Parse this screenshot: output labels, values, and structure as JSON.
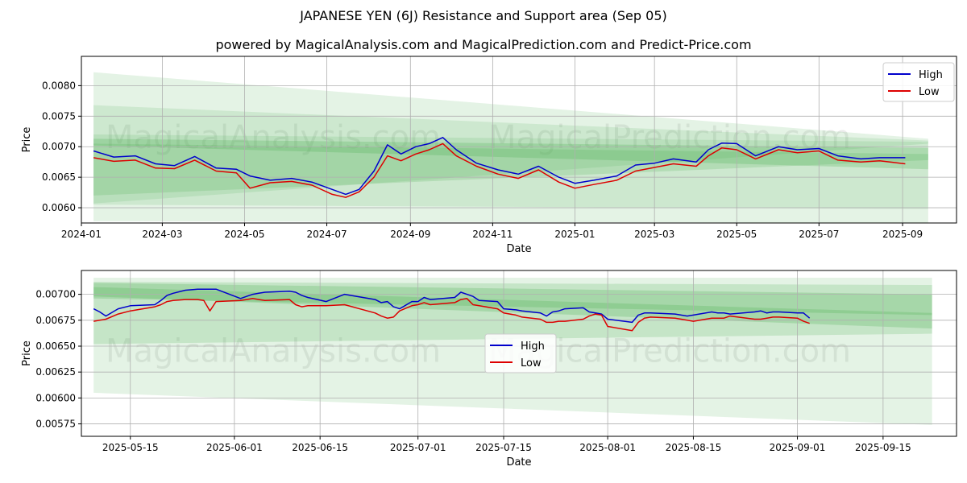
{
  "title": "JAPANESE YEN (6J) Resistance and Support area (Sep 05)",
  "subtitle": "powered by MagicalAnalysis.com and MagicalPrediction.com and Predict-Price.com",
  "watermarks": [
    "MagicalAnalysis.com",
    "MagicalPrediction.com"
  ],
  "colors": {
    "high": "#0000cc",
    "low": "#dd0000",
    "band": "#4caf50",
    "grid": "#b0b0b0"
  },
  "chart_data": [
    {
      "type": "line",
      "xlabel": "Date",
      "ylabel": "Price",
      "legend_position": "top-right",
      "x_range": [
        "2024-01-01",
        "2025-10-11"
      ],
      "ylim": [
        0.00575,
        0.00848
      ],
      "x_ticks": [
        "2024-01",
        "2024-03",
        "2024-05",
        "2024-07",
        "2024-09",
        "2024-11",
        "2025-01",
        "2025-03",
        "2025-05",
        "2025-07",
        "2025-09"
      ],
      "y_ticks": [
        0.006,
        0.0065,
        0.007,
        0.0075,
        0.008
      ],
      "y_tick_labels": [
        "0.0060",
        "0.0065",
        "0.0070",
        "0.0075",
        "0.0080"
      ],
      "grid": true,
      "series": [
        {
          "name": "High",
          "x": [
            "2024-01-10",
            "2024-01-25",
            "2024-02-10",
            "2024-02-25",
            "2024-03-10",
            "2024-03-25",
            "2024-04-10",
            "2024-04-25",
            "2024-05-05",
            "2024-05-20",
            "2024-06-05",
            "2024-06-20",
            "2024-07-05",
            "2024-07-15",
            "2024-07-25",
            "2024-08-05",
            "2024-08-15",
            "2024-08-25",
            "2024-09-05",
            "2024-09-15",
            "2024-09-25",
            "2024-10-05",
            "2024-10-20",
            "2024-11-05",
            "2024-11-20",
            "2024-12-05",
            "2024-12-20",
            "2025-01-01",
            "2025-01-15",
            "2025-02-01",
            "2025-02-15",
            "2025-03-01",
            "2025-03-15",
            "2025-04-01",
            "2025-04-10",
            "2025-04-20",
            "2025-05-01",
            "2025-05-15",
            "2025-06-01",
            "2025-06-15",
            "2025-07-01",
            "2025-07-15",
            "2025-08-01",
            "2025-08-15",
            "2025-09-03"
          ],
          "values": [
            0.00693,
            0.00683,
            0.00685,
            0.00672,
            0.00669,
            0.00684,
            0.00665,
            0.00663,
            0.00652,
            0.00645,
            0.00648,
            0.00642,
            0.0063,
            0.00622,
            0.0063,
            0.0066,
            0.00703,
            0.00688,
            0.007,
            0.00705,
            0.00715,
            0.00695,
            0.00673,
            0.00662,
            0.00655,
            0.00668,
            0.0065,
            0.0064,
            0.00645,
            0.00652,
            0.0067,
            0.00673,
            0.0068,
            0.00675,
            0.00695,
            0.00706,
            0.00705,
            0.00685,
            0.007,
            0.00695,
            0.00697,
            0.00685,
            0.0068,
            0.00682,
            0.00682
          ]
        },
        {
          "name": "Low",
          "x": [
            "2024-01-10",
            "2024-01-25",
            "2024-02-10",
            "2024-02-25",
            "2024-03-10",
            "2024-03-25",
            "2024-04-10",
            "2024-04-25",
            "2024-05-05",
            "2024-05-20",
            "2024-06-05",
            "2024-06-20",
            "2024-07-05",
            "2024-07-15",
            "2024-07-25",
            "2024-08-05",
            "2024-08-15",
            "2024-08-25",
            "2024-09-05",
            "2024-09-15",
            "2024-09-25",
            "2024-10-05",
            "2024-10-20",
            "2024-11-05",
            "2024-11-20",
            "2024-12-05",
            "2024-12-20",
            "2025-01-01",
            "2025-01-15",
            "2025-02-01",
            "2025-02-15",
            "2025-03-01",
            "2025-03-15",
            "2025-04-01",
            "2025-04-10",
            "2025-04-20",
            "2025-05-01",
            "2025-05-15",
            "2025-06-01",
            "2025-06-15",
            "2025-07-01",
            "2025-07-15",
            "2025-08-01",
            "2025-08-15",
            "2025-09-03"
          ],
          "values": [
            0.00682,
            0.00676,
            0.00678,
            0.00665,
            0.00664,
            0.00678,
            0.0066,
            0.00657,
            0.00632,
            0.00641,
            0.00643,
            0.00637,
            0.00622,
            0.00617,
            0.00626,
            0.0065,
            0.00685,
            0.00677,
            0.00688,
            0.00695,
            0.00705,
            0.00685,
            0.00668,
            0.00655,
            0.00648,
            0.00662,
            0.00642,
            0.00632,
            0.00638,
            0.00645,
            0.0066,
            0.00666,
            0.00672,
            0.00668,
            0.00685,
            0.00698,
            0.00695,
            0.0068,
            0.00695,
            0.0069,
            0.00693,
            0.00678,
            0.00675,
            0.00677,
            0.00672
          ]
        }
      ],
      "bands": [
        {
          "x": [
            "2024-01-10",
            "2025-09-20"
          ],
          "upper": [
            0.00822,
            0.00713
          ],
          "lower": [
            0.00578,
            0.00575
          ],
          "opacity": 0.15
        },
        {
          "x": [
            "2024-01-10",
            "2025-09-20"
          ],
          "upper": [
            0.00768,
            0.0071
          ],
          "lower": [
            0.00605,
            0.00598
          ],
          "opacity": 0.15
        },
        {
          "x": [
            "2024-01-10",
            "2025-09-20"
          ],
          "upper": [
            0.0072,
            0.00708
          ],
          "lower": [
            0.00607,
            0.00705
          ],
          "opacity": 0.15
        },
        {
          "x": [
            "2024-01-10",
            "2025-09-20"
          ],
          "upper": [
            0.00713,
            0.00698
          ],
          "lower": [
            0.00702,
            0.00663
          ],
          "opacity": 0.25
        },
        {
          "x": [
            "2024-01-10",
            "2025-09-20"
          ],
          "upper": [
            0.00705,
            0.00688
          ],
          "lower": [
            0.0062,
            0.00678
          ],
          "opacity": 0.2
        }
      ]
    },
    {
      "type": "line",
      "xlabel": "Date",
      "ylabel": "Price",
      "legend_position": "center",
      "x_range": [
        "2025-05-07",
        "2025-09-27"
      ],
      "ylim": [
        0.00563,
        0.00723
      ],
      "x_ticks": [
        "2025-05-15",
        "2025-06-01",
        "2025-06-15",
        "2025-07-01",
        "2025-07-15",
        "2025-08-01",
        "2025-08-15",
        "2025-09-01",
        "2025-09-15"
      ],
      "y_ticks": [
        0.00575,
        0.006,
        0.00625,
        0.0065,
        0.00675,
        0.007
      ],
      "y_tick_labels": [
        "0.00575",
        "0.00600",
        "0.00625",
        "0.00650",
        "0.00675",
        "0.00700"
      ],
      "grid": true,
      "series": [
        {
          "name": "High",
          "x": [
            "2025-05-09",
            "2025-05-10",
            "2025-05-11",
            "2025-05-13",
            "2025-05-15",
            "2025-05-19",
            "2025-05-20",
            "2025-05-21",
            "2025-05-22",
            "2025-05-24",
            "2025-05-26",
            "2025-05-27",
            "2025-05-28",
            "2025-05-29",
            "2025-06-02",
            "2025-06-03",
            "2025-06-04",
            "2025-06-05",
            "2025-06-06",
            "2025-06-10",
            "2025-06-11",
            "2025-06-12",
            "2025-06-13",
            "2025-06-16",
            "2025-06-19",
            "2025-06-24",
            "2025-06-25",
            "2025-06-26",
            "2025-06-27",
            "2025-06-28",
            "2025-06-30",
            "2025-07-01",
            "2025-07-02",
            "2025-07-03",
            "2025-07-07",
            "2025-07-08",
            "2025-07-09",
            "2025-07-10",
            "2025-07-11",
            "2025-07-14",
            "2025-07-15",
            "2025-07-17",
            "2025-07-18",
            "2025-07-21",
            "2025-07-22",
            "2025-07-23",
            "2025-07-24",
            "2025-07-25",
            "2025-07-28",
            "2025-07-29",
            "2025-07-30",
            "2025-07-31",
            "2025-08-01",
            "2025-08-05",
            "2025-08-06",
            "2025-08-07",
            "2025-08-08",
            "2025-08-12",
            "2025-08-14",
            "2025-08-15",
            "2025-08-18",
            "2025-08-19",
            "2025-08-20",
            "2025-08-21",
            "2025-08-25",
            "2025-08-26",
            "2025-08-27",
            "2025-08-28",
            "2025-08-29",
            "2025-09-01",
            "2025-09-02",
            "2025-09-03"
          ],
          "values": [
            0.00686,
            0.00683,
            0.00679,
            0.00686,
            0.00689,
            0.0069,
            0.00694,
            0.00699,
            0.00701,
            0.00704,
            0.00705,
            0.00705,
            0.00705,
            0.00705,
            0.00696,
            0.00698,
            0.007,
            0.00701,
            0.00702,
            0.00703,
            0.00702,
            0.00699,
            0.00697,
            0.00693,
            0.007,
            0.00695,
            0.00692,
            0.00693,
            0.00688,
            0.00686,
            0.00693,
            0.00693,
            0.00697,
            0.00695,
            0.00697,
            0.00702,
            0.007,
            0.00698,
            0.00694,
            0.00693,
            0.00686,
            0.00685,
            0.00684,
            0.00682,
            0.00679,
            0.00683,
            0.00684,
            0.00686,
            0.00687,
            0.00683,
            0.00682,
            0.00681,
            0.00676,
            0.00673,
            0.0068,
            0.00682,
            0.00682,
            0.00681,
            0.00679,
            0.0068,
            0.00683,
            0.00682,
            0.00682,
            0.00681,
            0.00683,
            0.00684,
            0.00682,
            0.00683,
            0.00683,
            0.00682,
            0.00682,
            0.00677
          ]
        },
        {
          "name": "Low",
          "x": [
            "2025-05-09",
            "2025-05-10",
            "2025-05-11",
            "2025-05-13",
            "2025-05-15",
            "2025-05-19",
            "2025-05-20",
            "2025-05-21",
            "2025-05-22",
            "2025-05-24",
            "2025-05-26",
            "2025-05-27",
            "2025-05-28",
            "2025-05-29",
            "2025-06-02",
            "2025-06-03",
            "2025-06-04",
            "2025-06-05",
            "2025-06-06",
            "2025-06-10",
            "2025-06-11",
            "2025-06-12",
            "2025-06-13",
            "2025-06-16",
            "2025-06-19",
            "2025-06-24",
            "2025-06-25",
            "2025-06-26",
            "2025-06-27",
            "2025-06-28",
            "2025-06-30",
            "2025-07-01",
            "2025-07-02",
            "2025-07-03",
            "2025-07-07",
            "2025-07-08",
            "2025-07-09",
            "2025-07-10",
            "2025-07-11",
            "2025-07-14",
            "2025-07-15",
            "2025-07-17",
            "2025-07-18",
            "2025-07-21",
            "2025-07-22",
            "2025-07-23",
            "2025-07-24",
            "2025-07-25",
            "2025-07-28",
            "2025-07-29",
            "2025-07-30",
            "2025-07-31",
            "2025-08-01",
            "2025-08-05",
            "2025-08-06",
            "2025-08-07",
            "2025-08-08",
            "2025-08-12",
            "2025-08-14",
            "2025-08-15",
            "2025-08-18",
            "2025-08-19",
            "2025-08-20",
            "2025-08-21",
            "2025-08-25",
            "2025-08-26",
            "2025-08-27",
            "2025-08-28",
            "2025-08-29",
            "2025-09-01",
            "2025-09-02",
            "2025-09-03"
          ],
          "values": [
            0.00674,
            0.00675,
            0.00676,
            0.00681,
            0.00684,
            0.00688,
            0.0069,
            0.00693,
            0.00694,
            0.00695,
            0.00695,
            0.00694,
            0.00684,
            0.00693,
            0.00694,
            0.00695,
            0.00696,
            0.00695,
            0.00694,
            0.00695,
            0.0069,
            0.00688,
            0.00689,
            0.00689,
            0.0069,
            0.00682,
            0.00679,
            0.00677,
            0.00678,
            0.00684,
            0.00689,
            0.0069,
            0.00692,
            0.0069,
            0.00692,
            0.00695,
            0.00696,
            0.0069,
            0.00689,
            0.00686,
            0.00682,
            0.0068,
            0.00678,
            0.00676,
            0.00673,
            0.00673,
            0.00674,
            0.00674,
            0.00676,
            0.00679,
            0.00681,
            0.0068,
            0.00669,
            0.00665,
            0.00673,
            0.00677,
            0.00678,
            0.00677,
            0.00675,
            0.00674,
            0.00677,
            0.00677,
            0.00677,
            0.00679,
            0.00676,
            0.00676,
            0.00677,
            0.00678,
            0.00678,
            0.00677,
            0.00674,
            0.00672
          ]
        }
      ],
      "bands": [
        {
          "x": [
            "2025-05-09",
            "2025-09-23"
          ],
          "upper": [
            0.00716,
            0.00716
          ],
          "lower": [
            0.00605,
            0.00574
          ],
          "opacity": 0.15
        },
        {
          "x": [
            "2025-05-09",
            "2025-09-23"
          ],
          "upper": [
            0.00712,
            0.00709
          ],
          "lower": [
            0.00652,
            0.00662
          ],
          "opacity": 0.2
        },
        {
          "x": [
            "2025-05-09",
            "2025-09-23"
          ],
          "upper": [
            0.00711,
            0.007
          ],
          "lower": [
            0.00698,
            0.00667
          ],
          "opacity": 0.25
        },
        {
          "x": [
            "2025-05-09",
            "2025-09-23"
          ],
          "upper": [
            0.00707,
            0.00682
          ],
          "lower": [
            0.00696,
            0.0068
          ],
          "opacity": 0.25
        }
      ]
    }
  ]
}
